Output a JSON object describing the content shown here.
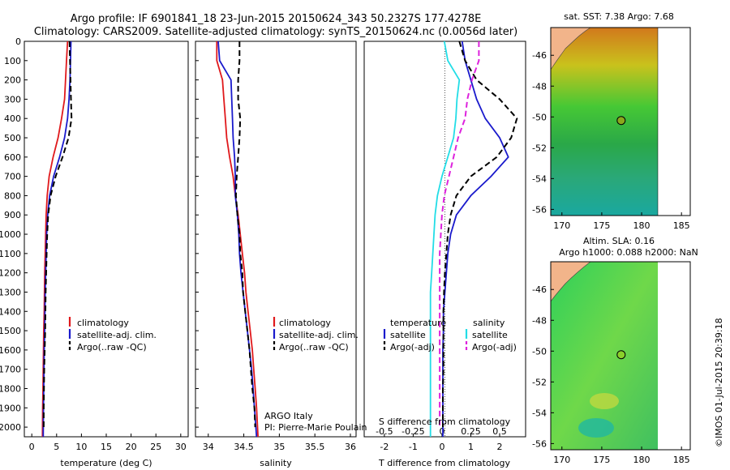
{
  "title": {
    "line1": "Argo profile: IF 6901841_18 23-Jun-2015 20150624_343 50.2327S 177.4278E",
    "line2": "Climatology: CARS2009. Satellite-adjusted climatology: synTS_20150624.nc (0.0056d later)"
  },
  "watermark": "©IMOS 01-Jul-2015 20:39:18",
  "colors": {
    "red": "#e0191c",
    "blue": "#1a1acc",
    "black": "#000000",
    "cyan": "#22dde6",
    "magenta": "#dd22dd",
    "land": "#f2b48a"
  },
  "depth_ticks": [
    0,
    100,
    200,
    300,
    400,
    500,
    600,
    700,
    800,
    900,
    1000,
    1100,
    1200,
    1300,
    1400,
    1500,
    1600,
    1700,
    1800,
    1900,
    2000
  ],
  "chart_data": [
    {
      "type": "line",
      "xlabel": "temperature (deg C)",
      "xticks": [
        0,
        5,
        10,
        15,
        20,
        25,
        30
      ],
      "xlim": [
        -1.5,
        31.5
      ],
      "ylim": [
        2050,
        0
      ],
      "legend": {
        "placement": "lower-middle",
        "entries": [
          "climatology",
          "satellite-adj. clim.",
          "Argo(..raw -QC)"
        ]
      },
      "series": [
        {
          "name": "climatology",
          "color": "red",
          "x": [
            7.2,
            7.0,
            6.8,
            6.6,
            6.0,
            5.3,
            4.3,
            3.5,
            3.1,
            2.9,
            2.8,
            2.7,
            2.6,
            2.55,
            2.5,
            2.4,
            2.35,
            2.3,
            2.25,
            2.2,
            2.15
          ],
          "y": [
            0,
            100,
            200,
            300,
            400,
            500,
            600,
            700,
            800,
            900,
            1000,
            1100,
            1200,
            1300,
            1400,
            1500,
            1600,
            1700,
            1800,
            1900,
            2050
          ]
        },
        {
          "name": "satellite-adj. clim.",
          "color": "blue",
          "x": [
            7.9,
            7.8,
            7.7,
            7.5,
            7.2,
            6.6,
            5.6,
            4.4,
            3.6,
            3.2,
            3.0,
            2.9,
            2.8,
            2.7,
            2.65,
            2.6,
            2.5,
            2.45,
            2.4,
            2.35,
            2.3
          ],
          "y": [
            0,
            100,
            200,
            300,
            400,
            500,
            600,
            700,
            800,
            900,
            1000,
            1100,
            1200,
            1300,
            1400,
            1500,
            1600,
            1700,
            1800,
            1900,
            2050
          ]
        },
        {
          "name": "Argo(..raw -QC)",
          "color": "black",
          "dashed": true,
          "x": [
            7.6,
            7.7,
            7.8,
            7.9,
            8.0,
            7.4,
            6.2,
            4.8,
            3.8,
            3.3,
            3.1,
            3.0,
            2.9,
            2.8,
            2.75,
            2.7,
            2.6,
            2.5,
            2.45,
            2.4,
            2.4
          ],
          "y": [
            0,
            100,
            200,
            300,
            400,
            500,
            600,
            700,
            800,
            900,
            1000,
            1100,
            1200,
            1300,
            1400,
            1500,
            1600,
            1700,
            1800,
            1900,
            2000
          ]
        }
      ]
    },
    {
      "type": "line",
      "xlabel": "salinity",
      "xticks": [
        34,
        34.5,
        35,
        35.5,
        36
      ],
      "xlim": [
        33.82,
        36.08
      ],
      "ylim": [
        2050,
        0
      ],
      "legend": {
        "placement": "lower-middle",
        "entries": [
          "climatology",
          "satellite-adj. clim.",
          "Argo(..raw -QC)"
        ]
      },
      "annotations": [
        "ARGO Italy",
        "PI: Pierre-Marie Poulain"
      ],
      "series": [
        {
          "name": "climatology",
          "color": "red",
          "x": [
            34.12,
            34.12,
            34.2,
            34.22,
            34.24,
            34.26,
            34.3,
            34.35,
            34.38,
            34.42,
            34.45,
            34.48,
            34.51,
            34.53,
            34.56,
            34.59,
            34.62,
            34.64,
            34.66,
            34.68,
            34.7
          ],
          "y": [
            0,
            100,
            200,
            300,
            400,
            500,
            600,
            700,
            800,
            900,
            1000,
            1100,
            1200,
            1300,
            1400,
            1500,
            1600,
            1700,
            1800,
            1900,
            2050
          ]
        },
        {
          "name": "satellite-adj. clim.",
          "color": "blue",
          "x": [
            34.14,
            34.16,
            34.32,
            34.33,
            34.34,
            34.35,
            34.37,
            34.38,
            34.38,
            34.41,
            34.43,
            34.44,
            34.46,
            34.49,
            34.52,
            34.55,
            34.58,
            34.61,
            34.63,
            34.65,
            34.68
          ],
          "y": [
            0,
            100,
            200,
            300,
            400,
            500,
            600,
            700,
            800,
            900,
            1000,
            1100,
            1200,
            1300,
            1400,
            1500,
            1600,
            1700,
            1800,
            1900,
            2050
          ]
        },
        {
          "name": "Argo(..raw -QC)",
          "color": "black",
          "dashed": true,
          "x": [
            34.44,
            34.44,
            34.42,
            34.42,
            34.45,
            34.44,
            34.42,
            34.4,
            34.39,
            34.41,
            34.44,
            34.45,
            34.48,
            34.49,
            34.52,
            34.55,
            34.58,
            34.6,
            34.62,
            34.65,
            34.66
          ],
          "y": [
            0,
            100,
            200,
            300,
            400,
            500,
            600,
            700,
            800,
            900,
            1000,
            1100,
            1200,
            1300,
            1400,
            1500,
            1600,
            1700,
            1800,
            1900,
            2000
          ]
        }
      ]
    },
    {
      "type": "line",
      "xlabel": "T difference from climatology",
      "xticks": [
        -2,
        -1,
        0,
        1,
        2
      ],
      "x2label": "S difference from climatology",
      "x2ticks": [
        -0.5,
        -0.25,
        0,
        0.25,
        0.5
      ],
      "xlim": [
        -2.7,
        2.9
      ],
      "ylim": [
        2050,
        0
      ],
      "legend": {
        "placement": "lower-middle",
        "entries": [
          "temperature",
          "salinity",
          "satellite",
          "Argo(-adj)",
          "satellite",
          "Argo(-adj)"
        ]
      },
      "series": [
        {
          "name": "temperature satellite",
          "color": "blue",
          "x": [
            0.7,
            0.8,
            1.0,
            1.2,
            1.5,
            2.0,
            2.3,
            1.7,
            1.0,
            0.5,
            0.3,
            0.2,
            0.15,
            0.1,
            0.05,
            0.05,
            0.03,
            0.03,
            0.03,
            0.03,
            0.03
          ],
          "y": [
            0,
            100,
            200,
            300,
            400,
            500,
            600,
            700,
            800,
            900,
            1000,
            1100,
            1200,
            1300,
            1400,
            1500,
            1600,
            1700,
            1800,
            1900,
            2050
          ]
        },
        {
          "name": "temperature Argo(-adj)",
          "color": "black",
          "dashed": true,
          "x": [
            0.6,
            0.8,
            1.2,
            2.0,
            2.6,
            2.4,
            1.9,
            1.0,
            0.5,
            0.3,
            0.2,
            0.15,
            0.1,
            0.07,
            0.05,
            0.05,
            0.05,
            0.05,
            0.03,
            0.03,
            0.03
          ],
          "y": [
            0,
            100,
            200,
            300,
            400,
            500,
            600,
            700,
            800,
            900,
            1000,
            1100,
            1200,
            1300,
            1400,
            1500,
            1600,
            1700,
            1800,
            1900,
            2000
          ]
        },
        {
          "name": "salinity satellite",
          "color": "cyan",
          "x": [
            0.02,
            0.05,
            0.15,
            0.13,
            0.12,
            0.1,
            0.05,
            0.0,
            -0.04,
            -0.06,
            -0.07,
            -0.08,
            -0.09,
            -0.1,
            -0.1,
            -0.1,
            -0.1,
            -0.1,
            -0.1,
            -0.1,
            -0.1
          ],
          "y": [
            0,
            100,
            200,
            300,
            400,
            500,
            600,
            700,
            800,
            900,
            1000,
            1100,
            1200,
            1300,
            1400,
            1500,
            1600,
            1700,
            1800,
            1900,
            2050
          ]
        },
        {
          "name": "salinity Argo(-adj)",
          "color": "magenta",
          "dashed": true,
          "x": [
            0.32,
            0.32,
            0.26,
            0.22,
            0.2,
            0.14,
            0.1,
            0.06,
            0.02,
            0.0,
            -0.01,
            -0.02,
            -0.02,
            -0.02,
            -0.02,
            -0.02,
            -0.02,
            -0.02,
            -0.02,
            -0.02,
            -0.02
          ],
          "y": [
            0,
            100,
            200,
            300,
            400,
            500,
            600,
            700,
            800,
            900,
            1000,
            1100,
            1200,
            1300,
            1400,
            1500,
            1600,
            1700,
            1800,
            1900,
            2000
          ]
        }
      ]
    },
    {
      "type": "heatmap",
      "title": "sat. SST: 7.38 Argo: 7.68",
      "xticks": [
        170,
        175,
        180,
        185
      ],
      "yticks": [
        -46,
        -48,
        -50,
        -52,
        -54,
        -56
      ],
      "xlim": [
        168.6,
        186.1
      ],
      "ylim": [
        -56.4,
        -44.2
      ],
      "marker": {
        "lon": 177.4278,
        "lat": -50.2327
      }
    },
    {
      "type": "heatmap",
      "title": "Altim. SLA: 0.16",
      "subtitle": "Argo h1000: 0.088 h2000: NaN",
      "xticks": [
        170,
        175,
        180,
        185
      ],
      "yticks": [
        -46,
        -48,
        -50,
        -52,
        -54,
        -56
      ],
      "xlim": [
        168.6,
        186.1
      ],
      "ylim": [
        -56.4,
        -44.2
      ],
      "marker": {
        "lon": 177.4278,
        "lat": -50.2327
      }
    }
  ]
}
